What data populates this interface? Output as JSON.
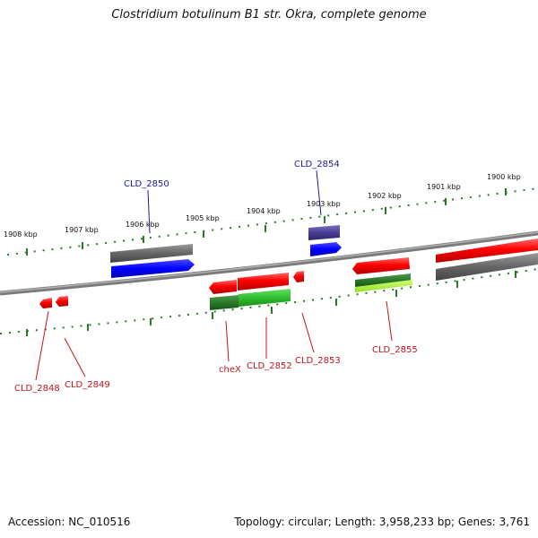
{
  "title": "Clostridium botulinum B1 str. Okra, complete genome",
  "footer": {
    "accession": "Accession: NC_010516",
    "topology": "Topology: circular; Length: 3,958,233 bp; Genes: 3,761"
  },
  "scale_labels": [
    "1908 kbp",
    "1907 kbp",
    "1906 kbp",
    "1905 kbp",
    "1904 kbp",
    "1903 kbp",
    "1902 kbp",
    "1901 kbp",
    "1900 kbp"
  ],
  "gene_labels": {
    "cld_2850": "CLD_2850",
    "cld_2854": "CLD_2854",
    "cld_2848": "CLD_2848",
    "cld_2849": "CLD_2849",
    "chex": "cheX",
    "cld_2852": "CLD_2852",
    "cld_2853": "CLD_2853",
    "cld_2855": "CLD_2855"
  },
  "colors": {
    "backbone": "#8c8c8c",
    "scale_ticks": "#2a7a2a",
    "forward_gene": "#ff0000",
    "cds_gray": "#707070",
    "cds_blue": "#0000ff",
    "cds_indigo": "#4a3f95",
    "cds_green": "#33cc33",
    "cds_lime": "#aaff33",
    "label_blue": "#1a1aa8",
    "label_red": "#c0141a"
  }
}
